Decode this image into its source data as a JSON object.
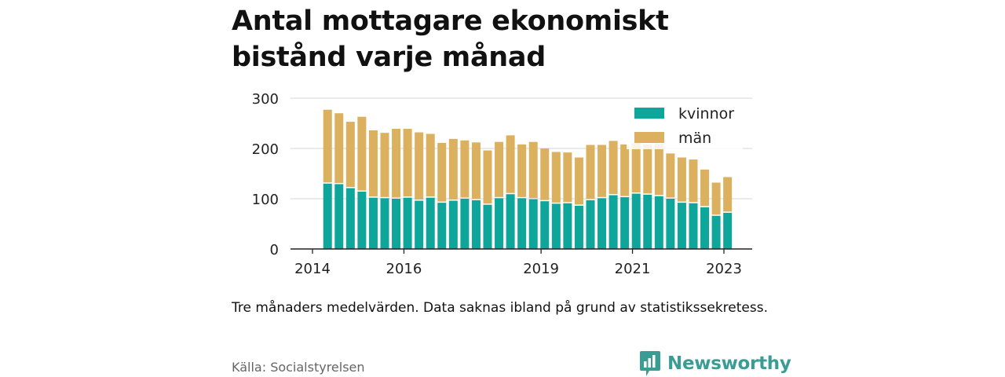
{
  "title": "Antal mottagare ekonomiskt bistånd varje månad",
  "note": "Tre månaders medelvärden. Data saknas ibland på grund av statistikssekretess.",
  "source": "Källa: Socialstyrelsen",
  "logo": {
    "text": "Newsworthy",
    "color": "#3a9d94",
    "icon": "bar-chart-speech-icon"
  },
  "colors": {
    "kvinnor": "#0ea59b",
    "man": "#dbb05e",
    "grid": "#dddddd",
    "axis": "#222222"
  },
  "chart_data": {
    "type": "bar",
    "stacked": true,
    "title": "Antal mottagare ekonomiskt bistånd varje månad",
    "xlabel": "",
    "ylabel": "",
    "ylim": [
      0,
      300
    ],
    "yticks": [
      "0",
      "100",
      "200",
      "300"
    ],
    "xticks": [
      {
        "label": "2014",
        "year": 2014.0
      },
      {
        "label": "2016",
        "year": 2016.0
      },
      {
        "label": "2019",
        "year": 2019.0
      },
      {
        "label": "2021",
        "year": 2021.0
      },
      {
        "label": "2023",
        "year": 2023.0
      }
    ],
    "grid": true,
    "legend_position": "top-right",
    "x": [
      2014.33,
      2014.58,
      2014.83,
      2015.08,
      2015.33,
      2015.58,
      2015.83,
      2016.08,
      2016.33,
      2016.58,
      2016.83,
      2017.08,
      2017.33,
      2017.58,
      2017.83,
      2018.08,
      2018.33,
      2018.58,
      2018.83,
      2019.08,
      2019.33,
      2019.58,
      2019.83,
      2020.08,
      2020.33,
      2020.58,
      2020.83,
      2021.08,
      2021.33,
      2021.58,
      2021.83,
      2022.08,
      2022.33,
      2022.58,
      2022.83,
      2023.08
    ],
    "series": [
      {
        "name": "kvinnor",
        "values": [
          130,
          129,
          121,
          114,
          102,
          101,
          100,
          102,
          96,
          102,
          92,
          96,
          100,
          97,
          88,
          101,
          109,
          101,
          99,
          95,
          90,
          91,
          86,
          97,
          101,
          107,
          103,
          110,
          108,
          105,
          100,
          92,
          91,
          83,
          66,
          72
        ]
      },
      {
        "name": "män",
        "values": [
          147,
          141,
          132,
          149,
          134,
          130,
          139,
          137,
          136,
          127,
          119,
          123,
          116,
          115,
          108,
          112,
          117,
          107,
          114,
          105,
          103,
          101,
          96,
          110,
          106,
          108,
          105,
          101,
          100,
          104,
          90,
          90,
          87,
          75,
          66,
          71
        ]
      }
    ]
  }
}
